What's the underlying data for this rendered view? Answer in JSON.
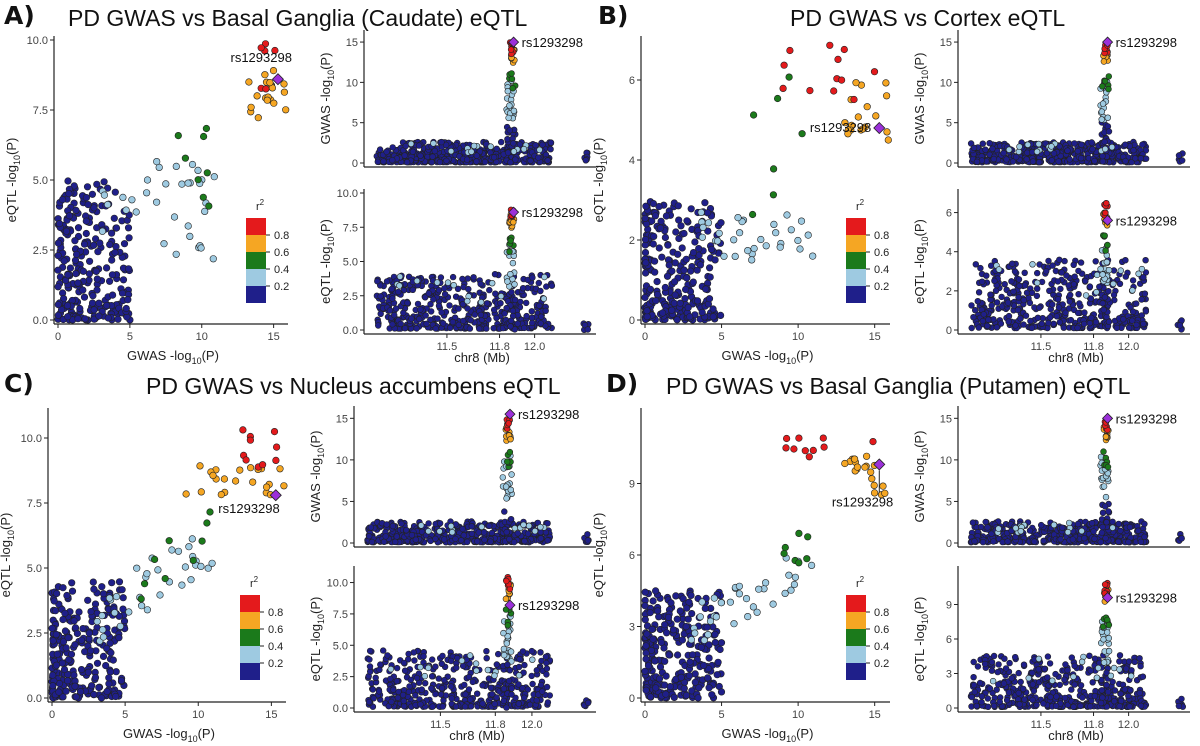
{
  "colors": {
    "r2_0.8": "#e41a1c",
    "r2_0.6": "#f5a623",
    "r2_0.4": "#1b7a1b",
    "r2_0.2": "#9ecae1",
    "r2_0.0": "#1f1f8a",
    "lead": "#9b30d9"
  },
  "legend": {
    "title": "r",
    "superscript": "2",
    "labels": [
      "0.8",
      "0.6",
      "0.4",
      "0.2"
    ]
  },
  "chart_data": [
    {
      "letter": "A)",
      "title": "PD GWAS vs Basal Ganglia (Caudate) eQTL",
      "lead_snp": "rs1293298",
      "scatter": {
        "type": "scatter",
        "xlabel": "GWAS -log10(P)",
        "ylabel": "eQTL -log10(P)",
        "xlim": [
          0,
          16
        ],
        "ylim": [
          0,
          10
        ],
        "xticks": [
          "0",
          "5",
          "10",
          "15"
        ],
        "yticks": [
          "0.0",
          "2.5",
          "5.0",
          "7.5",
          "10.0"
        ],
        "lead": [
          15.3,
          8.6
        ],
        "clusters": [
          {
            "r2": 0.0,
            "x": [
              0,
              5
            ],
            "y": [
              0,
              5
            ],
            "n": 260,
            "shape": "blob"
          },
          {
            "r2": 0.2,
            "x": [
              3,
              11
            ],
            "y": [
              2,
              5.7
            ],
            "n": 34,
            "shape": "uniform"
          },
          {
            "r2": 0.4,
            "x": [
              8,
              11
            ],
            "y": [
              4,
              7
            ],
            "n": 8,
            "shape": "uniform"
          },
          {
            "r2": 0.6,
            "x": [
              13,
              16
            ],
            "y": [
              7.1,
              9
            ],
            "n": 20,
            "shape": "uniform"
          },
          {
            "r2": 0.8,
            "x": [
              14,
              15.5
            ],
            "y": [
              8,
              10
            ],
            "n": 6,
            "shape": "uniform"
          }
        ]
      },
      "gwas_locus": {
        "type": "scatter",
        "xlabel": "",
        "ylabel": "GWAS -log10(P)",
        "xlim": [
          11.05,
          12.35
        ],
        "ylim": [
          0,
          16
        ],
        "xticks": [],
        "yticks": [
          "0",
          "5",
          "10",
          "15"
        ],
        "peak_x": 11.87,
        "peak_y": 15,
        "lead": [
          11.88,
          15
        ],
        "background_max": 2.5
      },
      "eqtl_locus": {
        "type": "scatter",
        "xlabel": "chr8 (Mb)",
        "ylabel": "eQTL -log10(P)",
        "xlim": [
          11.05,
          12.35
        ],
        "ylim": [
          0,
          10
        ],
        "xticks": [
          "11.5",
          "11.8",
          "12.0"
        ],
        "yticks": [
          "0.0",
          "2.5",
          "5.0",
          "7.5",
          "10.0"
        ],
        "peak_x": 11.87,
        "peak_y": 9,
        "lead": [
          11.88,
          8.6
        ],
        "background_max": 4
      }
    },
    {
      "letter": "B)",
      "title": "PD GWAS vs Cortex eQTL",
      "lead_snp": "rs1293298",
      "scatter": {
        "type": "scatter",
        "xlabel": "GWAS -log10(P)",
        "ylabel": "eQTL -log10(P)",
        "xlim": [
          0,
          16
        ],
        "ylim": [
          0,
          7
        ],
        "xticks": [
          "0",
          "5",
          "10",
          "15"
        ],
        "yticks": [
          "0",
          "2",
          "4",
          "6"
        ],
        "lead": [
          15.3,
          4.8
        ],
        "clusters": [
          {
            "r2": 0.0,
            "x": [
              0,
              5
            ],
            "y": [
              0,
              3
            ],
            "n": 260,
            "shape": "blob"
          },
          {
            "r2": 0.2,
            "x": [
              3,
              11
            ],
            "y": [
              1.5,
              2.7
            ],
            "n": 32,
            "shape": "uniform"
          },
          {
            "r2": 0.4,
            "x": [
              6,
              11
            ],
            "y": [
              2.5,
              6.5
            ],
            "n": 7,
            "shape": "uniform"
          },
          {
            "r2": 0.6,
            "x": [
              13,
              16
            ],
            "y": [
              4.5,
              6
            ],
            "n": 18,
            "shape": "uniform"
          },
          {
            "r2": 0.8,
            "x": [
              9,
              15
            ],
            "y": [
              5.5,
              7
            ],
            "n": 12,
            "shape": "uniform"
          }
        ]
      },
      "gwas_locus": {
        "type": "scatter",
        "xlabel": "",
        "ylabel": "GWAS -log10(P)",
        "xlim": [
          11.05,
          12.35
        ],
        "ylim": [
          0,
          16
        ],
        "xticks": [],
        "yticks": [
          "0",
          "5",
          "10",
          "15"
        ],
        "peak_x": 11.87,
        "peak_y": 15,
        "lead": [
          11.88,
          15
        ],
        "background_max": 2.5
      },
      "eqtl_locus": {
        "type": "scatter",
        "xlabel": "chr8 (Mb)",
        "ylabel": "eQTL -log10(P)",
        "xlim": [
          11.05,
          12.35
        ],
        "ylim": [
          0,
          7
        ],
        "xticks": [
          "11.5",
          "11.8",
          "12.0"
        ],
        "yticks": [
          "0",
          "2",
          "4",
          "6"
        ],
        "peak_x": 11.87,
        "peak_y": 6.5,
        "lead": [
          11.88,
          5.6
        ],
        "background_max": 3.5
      }
    },
    {
      "letter": "C)",
      "title": "PD GWAS vs Nucleus accumbens eQTL",
      "lead_snp": "rs1293298",
      "scatter": {
        "type": "scatter",
        "xlabel": "GWAS -log10(P)",
        "ylabel": "eQTL -log10(P)",
        "xlim": [
          0,
          16
        ],
        "ylim": [
          0,
          11
        ],
        "xticks": [
          "0",
          "5",
          "10",
          "15"
        ],
        "yticks": [
          "0.0",
          "2.5",
          "5.0",
          "7.5",
          "10.0"
        ],
        "lead": [
          15.3,
          7.8
        ],
        "clusters": [
          {
            "r2": 0.0,
            "x": [
              0,
              5
            ],
            "y": [
              0,
              4.5
            ],
            "n": 260,
            "shape": "blob"
          },
          {
            "r2": 0.2,
            "x": [
              3,
              11
            ],
            "y": [
              2,
              7
            ],
            "n": 34,
            "shape": "diag"
          },
          {
            "r2": 0.4,
            "x": [
              6,
              11
            ],
            "y": [
              3.5,
              7.5
            ],
            "n": 9,
            "shape": "diag"
          },
          {
            "r2": 0.6,
            "x": [
              9,
              16
            ],
            "y": [
              7.8,
              9
            ],
            "n": 22,
            "shape": "uniform"
          },
          {
            "r2": 0.8,
            "x": [
              13,
              15.5
            ],
            "y": [
              8.5,
              10.5
            ],
            "n": 10,
            "shape": "uniform"
          }
        ]
      },
      "gwas_locus": {
        "type": "scatter",
        "xlabel": "",
        "ylabel": "GWAS -log10(P)",
        "xlim": [
          11.05,
          12.35
        ],
        "ylim": [
          0,
          16
        ],
        "xticks": [],
        "yticks": [
          "0",
          "5",
          "10",
          "15"
        ],
        "peak_x": 11.87,
        "peak_y": 15,
        "lead": [
          11.88,
          15.5
        ],
        "background_max": 2.5
      },
      "eqtl_locus": {
        "type": "scatter",
        "xlabel": "chr8 (Mb)",
        "ylabel": "eQTL -log10(P)",
        "xlim": [
          11.05,
          12.35
        ],
        "ylim": [
          0,
          11
        ],
        "xticks": [
          "11.5",
          "11.8",
          "12.0"
        ],
        "yticks": [
          "0.0",
          "2.5",
          "5.0",
          "7.5",
          "10.0"
        ],
        "peak_x": 11.87,
        "peak_y": 10.5,
        "lead": [
          11.88,
          8.2
        ],
        "background_max": 4.5
      }
    },
    {
      "letter": "D)",
      "title": "PD GWAS vs Basal Ganglia (Putamen) eQTL",
      "lead_snp": "rs1293298",
      "scatter": {
        "type": "scatter",
        "xlabel": "GWAS -log10(P)",
        "ylabel": "eQTL -log10(P)",
        "xlim": [
          0,
          16
        ],
        "ylim": [
          0,
          12
        ],
        "xticks": [
          "0",
          "5",
          "10",
          "15"
        ],
        "yticks": [
          "0",
          "3",
          "6",
          "9"
        ],
        "lead": [
          15.3,
          9.8
        ],
        "clusters": [
          {
            "r2": 0.0,
            "x": [
              0,
              5
            ],
            "y": [
              0,
              4.5
            ],
            "n": 260,
            "shape": "blob"
          },
          {
            "r2": 0.2,
            "x": [
              3,
              11
            ],
            "y": [
              2,
              6.5
            ],
            "n": 34,
            "shape": "diag"
          },
          {
            "r2": 0.4,
            "x": [
              9,
              11
            ],
            "y": [
              5.5,
              7
            ],
            "n": 7,
            "shape": "uniform"
          },
          {
            "r2": 0.6,
            "x": [
              13,
              16
            ],
            "y": [
              8.5,
              10.5
            ],
            "n": 20,
            "shape": "uniform"
          },
          {
            "r2": 0.8,
            "x": [
              9,
              15
            ],
            "y": [
              10,
              11
            ],
            "n": 10,
            "shape": "uniform"
          }
        ]
      },
      "gwas_locus": {
        "type": "scatter",
        "xlabel": "",
        "ylabel": "GWAS -log10(P)",
        "xlim": [
          11.05,
          12.35
        ],
        "ylim": [
          0,
          16
        ],
        "xticks": [],
        "yticks": [
          "0",
          "5",
          "10",
          "15"
        ],
        "peak_x": 11.87,
        "peak_y": 15,
        "lead": [
          11.88,
          15
        ],
        "background_max": 2.5
      },
      "eqtl_locus": {
        "type": "scatter",
        "xlabel": "chr8 (Mb)",
        "ylabel": "eQTL -log10(P)",
        "xlim": [
          11.05,
          12.35
        ],
        "ylim": [
          0,
          12
        ],
        "xticks": [
          "11.5",
          "11.8",
          "12.0"
        ],
        "yticks": [
          "0",
          "3",
          "6",
          "9"
        ],
        "peak_x": 11.87,
        "peak_y": 11,
        "lead": [
          11.88,
          9.6
        ],
        "background_max": 4.5
      }
    }
  ]
}
